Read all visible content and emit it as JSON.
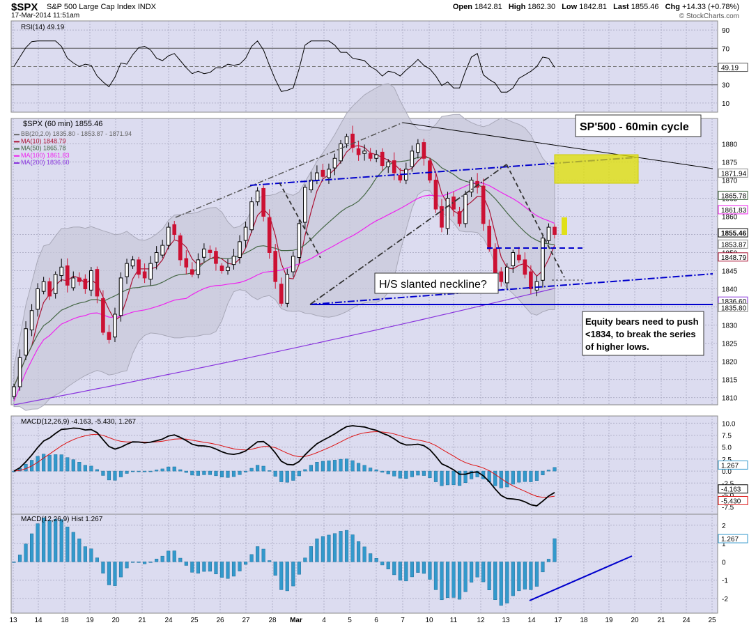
{
  "header": {
    "symbol": "$SPX",
    "name": "S&P 500 Large Cap Index",
    "exchange": "INDX",
    "date": "17-Mar-2014 11:51am",
    "brand": "© StockCharts.com",
    "open_label": "Open",
    "open": "1842.81",
    "high_label": "High",
    "high": "1862.30",
    "low_label": "Low",
    "low": "1842.81",
    "last_label": "Last",
    "last": "1855.46",
    "chg_label": "Chg",
    "chg": "+14.33 (+0.78%)"
  },
  "colors": {
    "panel_bg": "#dcdcf0",
    "bb_fill": "#c8c8d8",
    "candle_up": "#000000",
    "candle_down": "#cc1133",
    "ma10": "#aa1133",
    "ma50": "#446644",
    "ma100": "#ee22ee",
    "ma200": "#8833dd",
    "trend_blue": "#0000cc",
    "highlight": "#e0e000",
    "macd_hist": "#3399cc"
  },
  "rsi_panel": {
    "legend": "RSI(14) 49.19",
    "current_label": "49.19",
    "ticks": [
      "90",
      "70",
      "50",
      "30",
      "10"
    ]
  },
  "price_panel": {
    "legend_title": "$SPX (60 min) 1855.46",
    "legend_bb": "BB(20,2.0) 1835.80 - 1853.87 - 1871.94",
    "legend_ma10": "MA(10) 1848.79",
    "legend_ma50": "MA(50) 1865.78",
    "legend_ma100": "MA(100) 1861.83",
    "legend_ma200": "MA(200) 1836.60",
    "ticks": [
      "1880",
      "1875",
      "1870",
      "1865",
      "1860",
      "1855",
      "1850",
      "1845",
      "1840",
      "1835",
      "1830",
      "1825",
      "1820",
      "1815",
      "1810"
    ],
    "side_labels": [
      "1871.94",
      "1865.78",
      "1861.83",
      "1855.46",
      "1853.87",
      "1848.79",
      "1836.60",
      "1835.80"
    ],
    "annotation_cycle": "SP'500 - 60min cycle",
    "annotation_neckline": "H/S slanted neckline?",
    "annotation_bears": [
      "Equity bears need to push",
      "<1834, to break the series",
      "of higher lows."
    ]
  },
  "macd_panel": {
    "legend": "MACD(12,26,9) -4.163, -5.430, 1.267",
    "ticks": [
      "10.0",
      "7.5",
      "5.0",
      "2.5",
      "0.0",
      "-2.5",
      "-5.0",
      "-7.5"
    ],
    "side_labels": [
      "1.267",
      "-4.163",
      "-5.430"
    ]
  },
  "hist_panel": {
    "legend": "MACD(12,26,9) Hist 1.267",
    "ticks": [
      "2",
      "1",
      "0",
      "-1",
      "-2"
    ],
    "side_label": "1.267"
  },
  "x_axis": {
    "labels": [
      "13",
      "14",
      "18",
      "19",
      "20",
      "21",
      "24",
      "25",
      "26",
      "27",
      "28",
      "Mar",
      "4",
      "5",
      "6",
      "7",
      "10",
      "11",
      "12",
      "13",
      "14",
      "17",
      "18",
      "19",
      "20",
      "21",
      "24",
      "25"
    ]
  },
  "chart_data": {
    "type": "candlestick",
    "title": "$SPX S&P 500 Large Cap Index (60 min)",
    "ylim": [
      1808,
      1887
    ],
    "price_path": [
      1813,
      1821,
      1829,
      1834,
      1840,
      1842,
      1838,
      1844,
      1846,
      1841,
      1843,
      1842,
      1840,
      1845,
      1838,
      1828,
      1826,
      1833,
      1843,
      1847,
      1848,
      1844,
      1843,
      1847,
      1850,
      1852,
      1857,
      1855,
      1848,
      1846,
      1844,
      1848,
      1851,
      1850,
      1847,
      1845,
      1846,
      1849,
      1853,
      1857,
      1864,
      1867,
      1860,
      1850,
      1842,
      1836,
      1844,
      1849,
      1858,
      1868,
      1870,
      1872,
      1871,
      1873,
      1876,
      1880,
      1882,
      1879,
      1877,
      1878,
      1876,
      1877,
      1874,
      1875,
      1872,
      1870,
      1873,
      1878,
      1880,
      1876,
      1870,
      1862,
      1857,
      1865,
      1862,
      1858,
      1866,
      1870,
      1868,
      1858,
      1851,
      1844,
      1842,
      1846,
      1850,
      1848,
      1844,
      1840,
      1842,
      1854,
      1857,
      1855
    ],
    "rsi_current": 49.19,
    "macd": {
      "macd": -4.163,
      "signal": -5.43,
      "hist": 1.267
    },
    "ma_latest": {
      "ma10": 1848.79,
      "ma50": 1865.78,
      "ma100": 1861.83,
      "ma200": 1836.6
    },
    "bb_latest": {
      "lower": 1835.8,
      "mid": 1853.87,
      "upper": 1871.94
    }
  }
}
